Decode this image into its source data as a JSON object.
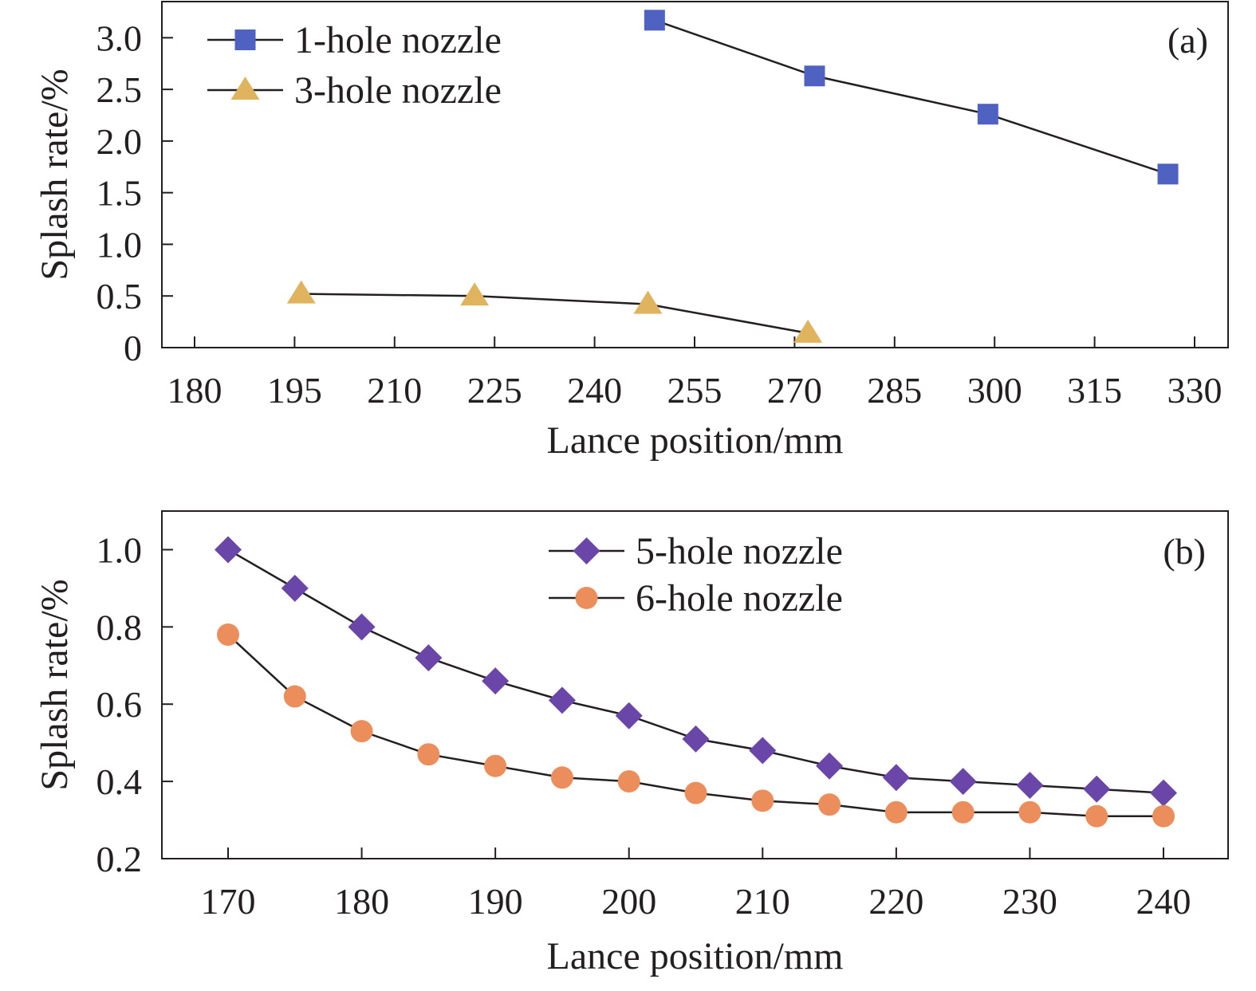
{
  "chart_data": [
    {
      "panel": "(a)",
      "type": "line",
      "xlabel": "Lance position/mm",
      "ylabel": "Splash rate/%",
      "xlim": [
        175,
        332
      ],
      "ylim": [
        0,
        3.35
      ],
      "xticks": [
        "180",
        "195",
        "210",
        "225",
        "240",
        "255",
        "270",
        "285",
        "300",
        "315",
        "330"
      ],
      "yticks": [
        "0",
        "0.5",
        "1.0",
        "1.5",
        "2.0",
        "2.5",
        "3.0"
      ],
      "legend_position": "top-left",
      "series": [
        {
          "name": "1-hole nozzle",
          "marker": "square",
          "color": "#4f62c2",
          "x": [
            249,
            273,
            299,
            326
          ],
          "y": [
            3.17,
            2.63,
            2.26,
            1.68
          ]
        },
        {
          "name": "3-hole nozzle",
          "marker": "triangle",
          "color": "#e0b45e",
          "x": [
            196,
            222,
            248,
            272
          ],
          "y": [
            0.52,
            0.5,
            0.42,
            0.14
          ]
        }
      ]
    },
    {
      "panel": "(b)",
      "type": "line",
      "xlabel": "Lance position/mm",
      "ylabel": "Splash rate/%",
      "xlim": [
        165,
        245
      ],
      "ylim": [
        0.2,
        1.1
      ],
      "xticks": [
        "170",
        "180",
        "190",
        "200",
        "210",
        "220",
        "230",
        "240"
      ],
      "yticks": [
        "0.2",
        "0.4",
        "0.6",
        "0.8",
        "1.0"
      ],
      "legend_position": "top-center",
      "series": [
        {
          "name": "5-hole nozzle",
          "marker": "diamond",
          "color": "#6a46a8",
          "x": [
            170,
            175,
            180,
            185,
            190,
            195,
            200,
            205,
            210,
            215,
            220,
            225,
            230,
            235,
            240
          ],
          "y": [
            1.0,
            0.9,
            0.8,
            0.72,
            0.66,
            0.61,
            0.57,
            0.51,
            0.48,
            0.44,
            0.41,
            0.4,
            0.39,
            0.38,
            0.37
          ]
        },
        {
          "name": "6-hole nozzle",
          "marker": "circle",
          "color": "#ec8d5c",
          "x": [
            170,
            175,
            180,
            185,
            190,
            195,
            200,
            205,
            210,
            215,
            220,
            225,
            230,
            235,
            240
          ],
          "y": [
            0.78,
            0.62,
            0.53,
            0.47,
            0.44,
            0.41,
            0.4,
            0.37,
            0.35,
            0.34,
            0.32,
            0.32,
            0.32,
            0.31,
            0.31
          ]
        }
      ]
    }
  ]
}
